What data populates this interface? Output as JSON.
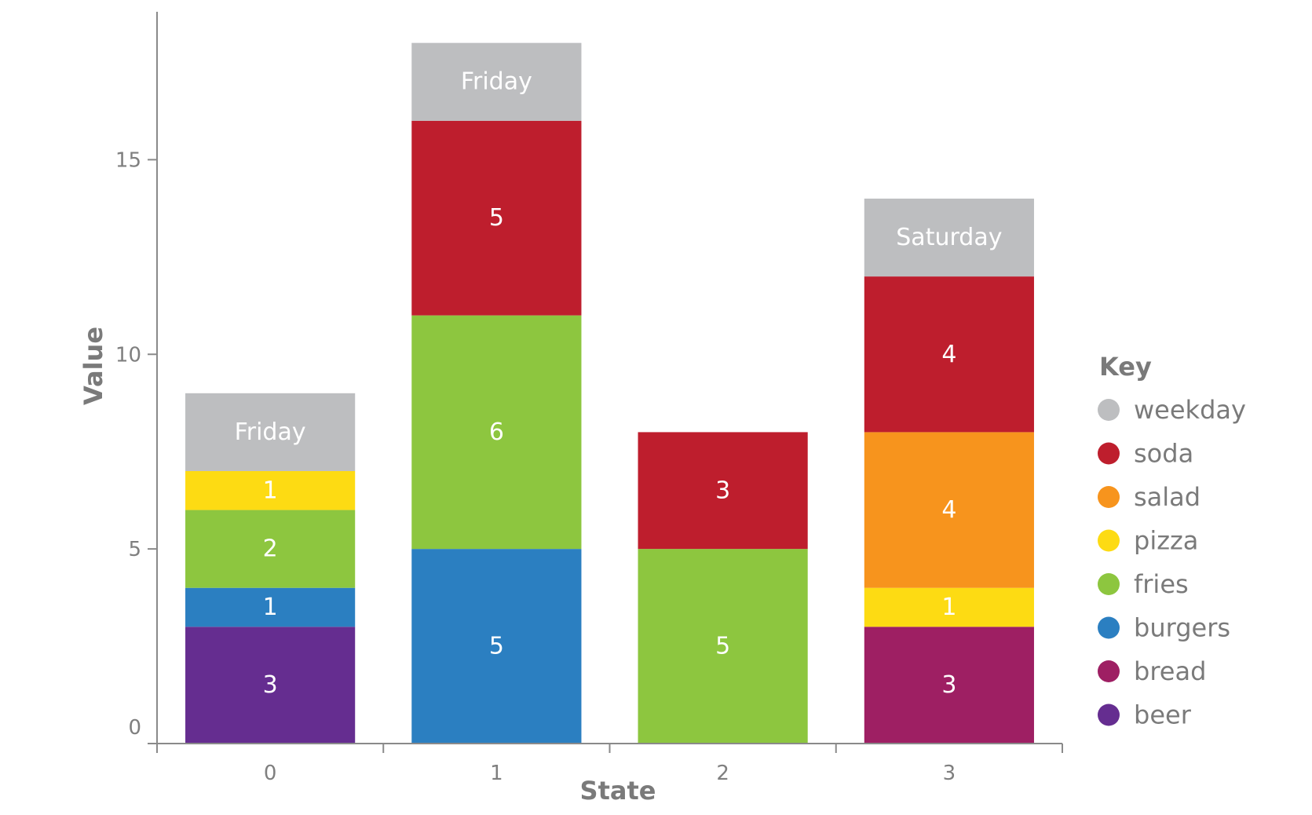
{
  "chart_data": {
    "type": "bar",
    "stacked": true,
    "xlabel": "State",
    "ylabel": "Value",
    "ylim": [
      0,
      18.8
    ],
    "y_ticks": [
      0,
      5,
      10,
      15
    ],
    "categories": [
      "0",
      "1",
      "2",
      "3"
    ],
    "colors": {
      "weekday": "#bdbec0",
      "soda": "#be1e2d",
      "salad": "#f7941d",
      "pizza": "#fddb13",
      "fries": "#8dc63f",
      "burgers": "#2b7fc1",
      "bread": "#9e1f63",
      "beer": "#652d90"
    },
    "series": [
      {
        "name": "beer",
        "values": [
          3,
          0,
          0,
          0
        ]
      },
      {
        "name": "bread",
        "values": [
          0,
          0,
          0,
          3
        ]
      },
      {
        "name": "burgers",
        "values": [
          1,
          5,
          0,
          0
        ]
      },
      {
        "name": "fries",
        "values": [
          2,
          6,
          5,
          0
        ]
      },
      {
        "name": "pizza",
        "values": [
          1,
          0,
          0,
          1
        ]
      },
      {
        "name": "salad",
        "values": [
          0,
          0,
          0,
          4
        ]
      },
      {
        "name": "soda",
        "values": [
          0,
          5,
          3,
          4
        ]
      },
      {
        "name": "weekday",
        "values": [
          2,
          2,
          0,
          2
        ],
        "labels": [
          "Friday",
          "Friday",
          "",
          "Saturday"
        ]
      }
    ],
    "legend": {
      "title": "Key",
      "placement": "right",
      "items": [
        "weekday",
        "soda",
        "salad",
        "pizza",
        "fries",
        "burgers",
        "bread",
        "beer"
      ]
    }
  }
}
